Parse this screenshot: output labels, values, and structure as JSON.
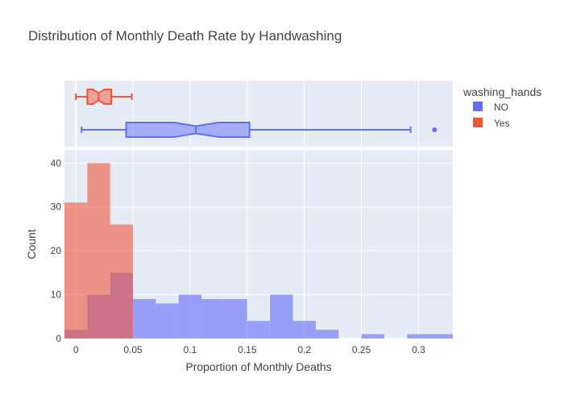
{
  "chart_data": {
    "type": "histogram+box",
    "title": "Distribution of Monthly Death Rate by Handwashing",
    "xlabel": "Proportion of Monthly Deaths",
    "ylabel": "Count",
    "xlim": [
      -0.01,
      0.33
    ],
    "ylim": [
      0,
      43
    ],
    "x_ticks": [
      0,
      0.05,
      0.1,
      0.15,
      0.2,
      0.25,
      0.3
    ],
    "x_tick_labels": [
      "0",
      "0.05",
      "0.1",
      "0.15",
      "0.2",
      "0.25",
      "0.3"
    ],
    "y_ticks": [
      0,
      10,
      20,
      30,
      40
    ],
    "y_tick_labels": [
      "0",
      "10",
      "20",
      "30",
      "40"
    ],
    "bin_width": 0.02,
    "legend": {
      "title": "washing_hands",
      "placement": "top-right",
      "entries": [
        {
          "label": "NO",
          "color": "#636efa"
        },
        {
          "label": "Yes",
          "color": "#ef553b"
        }
      ]
    },
    "series": [
      {
        "name": "NO",
        "color": "#636efa",
        "bins": [
          {
            "x0": -0.01,
            "x1": 0.01,
            "count": 2
          },
          {
            "x0": 0.01,
            "x1": 0.03,
            "count": 10
          },
          {
            "x0": 0.03,
            "x1": 0.05,
            "count": 15
          },
          {
            "x0": 0.05,
            "x1": 0.07,
            "count": 9
          },
          {
            "x0": 0.07,
            "x1": 0.09,
            "count": 8
          },
          {
            "x0": 0.09,
            "x1": 0.11,
            "count": 10
          },
          {
            "x0": 0.11,
            "x1": 0.13,
            "count": 9
          },
          {
            "x0": 0.13,
            "x1": 0.15,
            "count": 9
          },
          {
            "x0": 0.15,
            "x1": 0.17,
            "count": 4
          },
          {
            "x0": 0.17,
            "x1": 0.19,
            "count": 10
          },
          {
            "x0": 0.19,
            "x1": 0.21,
            "count": 4
          },
          {
            "x0": 0.21,
            "x1": 0.23,
            "count": 2
          },
          {
            "x0": 0.25,
            "x1": 0.27,
            "count": 1
          },
          {
            "x0": 0.29,
            "x1": 0.31,
            "count": 1
          },
          {
            "x0": 0.31,
            "x1": 0.33,
            "count": 1
          }
        ],
        "box": {
          "min": 0.005,
          "q1": 0.044,
          "median": 0.105,
          "q3": 0.152,
          "max": 0.293,
          "notch_low": 0.086,
          "notch_high": 0.125,
          "outliers": [
            0.314
          ]
        }
      },
      {
        "name": "Yes",
        "color": "#ef553b",
        "bins": [
          {
            "x0": -0.01,
            "x1": 0.01,
            "count": 31
          },
          {
            "x0": 0.01,
            "x1": 0.03,
            "count": 40
          },
          {
            "x0": 0.03,
            "x1": 0.05,
            "count": 26
          }
        ],
        "box": {
          "min": 0.0,
          "q1": 0.01,
          "median": 0.02,
          "q3": 0.031,
          "max": 0.049,
          "notch_low": 0.015,
          "notch_high": 0.025,
          "outliers": []
        }
      }
    ]
  }
}
